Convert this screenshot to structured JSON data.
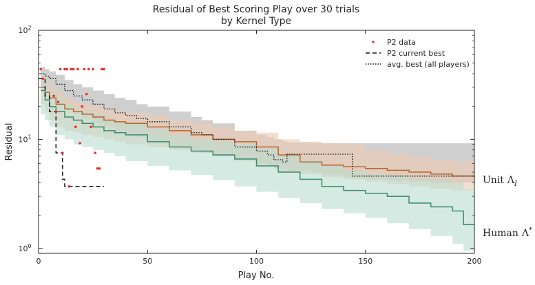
{
  "chart_data": {
    "type": "line",
    "title_line1": "Residual of Best Scoring Play over 30 trials",
    "title_line2": "by Kernel Type",
    "xlabel": "Play No.",
    "ylabel": "Residual",
    "xlim": [
      0,
      200
    ],
    "ylim": [
      0.9,
      100
    ],
    "yscale": "log",
    "x_ticks": [
      "0",
      "50",
      "100",
      "150",
      "200"
    ],
    "y_ticks": [
      {
        "base": "10",
        "exp": "0"
      },
      {
        "base": "10",
        "exp": "1"
      },
      {
        "base": "10",
        "exp": "2"
      }
    ],
    "colors": {
      "unit": "#b5672f",
      "unit_band": "#edc9b0",
      "human": "#3a8a6c",
      "human_band": "#b9dccf",
      "avg_best_band": "#a8a8a8",
      "p2_points": "#e8302a"
    },
    "legend": {
      "position": "top-right",
      "entries": [
        "P2 data",
        "P2 current best",
        "avg. best (all players)"
      ]
    },
    "side_labels": {
      "unit": {
        "text": "Unit",
        "symbol": "Λ",
        "sub": "I"
      },
      "human": {
        "text": "Human",
        "symbol": "Λ",
        "sup": "*"
      }
    },
    "series": [
      {
        "key": "unit",
        "x": [
          1,
          3,
          5,
          8,
          12,
          16,
          20,
          25,
          30,
          35,
          40,
          50,
          60,
          70,
          80,
          90,
          100,
          110,
          120,
          130,
          140,
          150,
          160,
          170,
          180,
          190,
          200
        ],
        "y": [
          30,
          27,
          24,
          21,
          19,
          18,
          17,
          16,
          15,
          14.5,
          14,
          13,
          12,
          11,
          10,
          9.5,
          8.5,
          7.2,
          6.2,
          5.8,
          5.6,
          5.4,
          5.2,
          5.0,
          4.8,
          4.6,
          4.4
        ],
        "lo": [
          23,
          21,
          18,
          15,
          13,
          12,
          11.5,
          11,
          10.5,
          10,
          9.5,
          9,
          8.5,
          8,
          7.5,
          7,
          6.3,
          5.7,
          5.0,
          4.8,
          4.5,
          4.3,
          4.1,
          3.9,
          3.7,
          3.5,
          3.4
        ],
        "hi": [
          36,
          34,
          31,
          27,
          24,
          22,
          21,
          20,
          19,
          18,
          17.5,
          16.5,
          15,
          14,
          13,
          12,
          11.5,
          10,
          9.5,
          9.2,
          9.0,
          8.0,
          7.3,
          7.0,
          6.5,
          6.2,
          6.0
        ]
      },
      {
        "key": "human",
        "x": [
          1,
          3,
          5,
          8,
          12,
          16,
          20,
          25,
          30,
          35,
          40,
          50,
          60,
          70,
          80,
          90,
          100,
          110,
          120,
          130,
          140,
          150,
          160,
          170,
          180,
          190,
          195,
          200
        ],
        "y": [
          28,
          23,
          20,
          18,
          16,
          15,
          14,
          13,
          12,
          11.5,
          11,
          9.5,
          8.5,
          7.8,
          7.2,
          6.6,
          5.7,
          5.0,
          4.3,
          3.7,
          3.4,
          3.2,
          3.0,
          2.6,
          2.4,
          2.2,
          1.65,
          1.65
        ],
        "lo": [
          20,
          17,
          15,
          13,
          11,
          10,
          9,
          8.5,
          8,
          7.5,
          7,
          6.3,
          5.7,
          5.2,
          4.7,
          4.2,
          3.7,
          3.3,
          2.9,
          2.6,
          2.3,
          2.1,
          1.9,
          1.7,
          1.5,
          1.3,
          1.1,
          0.95
        ],
        "hi": [
          36,
          31,
          27,
          24,
          21,
          19,
          18,
          17,
          15,
          14.5,
          14,
          12.5,
          11,
          10,
          9.5,
          9,
          8.2,
          7.3,
          6.5,
          5.7,
          5.1,
          4.8,
          4.6,
          4.4,
          4.2,
          4.0,
          3.5,
          3.3
        ]
      },
      {
        "key": "avg_best",
        "x": [
          1,
          3,
          5,
          8,
          12,
          16,
          20,
          25,
          30,
          35,
          40,
          45,
          50,
          60,
          70,
          75,
          80,
          90,
          100,
          105,
          108,
          112,
          114,
          125,
          130,
          140,
          144,
          150,
          160,
          170,
          180,
          190,
          200
        ],
        "y": [
          40,
          38,
          36,
          32,
          28,
          25,
          23,
          21,
          19,
          17.5,
          16.5,
          15.5,
          14.5,
          13,
          11.5,
          11,
          10,
          8.5,
          7.8,
          7.2,
          6.5,
          6.2,
          7.3,
          7.3,
          7.3,
          7.3,
          4.6,
          4.6,
          4.6,
          4.6,
          4.6,
          4.6,
          4.6
        ],
        "lo": [
          32,
          30,
          28,
          25,
          22,
          19,
          17,
          15.5,
          14,
          13,
          12,
          11,
          10.5,
          9.5,
          8.5,
          8,
          7.5,
          7.0,
          6.5,
          6.0,
          5.7,
          5.4,
          5.4,
          5.2,
          5.0,
          4.7,
          4.5,
          4.4,
          4.3,
          4.2,
          4.1,
          4.0,
          4.0
        ],
        "hi": [
          46,
          44,
          42,
          39,
          35,
          32,
          30,
          28,
          26,
          24,
          23,
          21,
          20,
          18,
          16,
          15,
          14,
          12,
          11,
          10.5,
          10,
          9.6,
          9.4,
          9.3,
          9.2,
          9.2,
          9.2,
          9.2,
          9.2,
          9.2,
          9.2,
          9.2,
          9.2
        ]
      }
    ],
    "p2_data": {
      "x": [
        1,
        2,
        7,
        8,
        9,
        10,
        11,
        12,
        13,
        14,
        15,
        16,
        17,
        18,
        19,
        20,
        21,
        22,
        23,
        24,
        25,
        26,
        27,
        28,
        29,
        30
      ],
      "y": [
        44,
        36,
        25,
        18,
        22,
        44,
        7.5,
        44,
        44,
        3.7,
        44,
        44,
        13,
        44,
        9.2,
        20,
        44,
        26,
        44,
        13,
        44,
        7.5,
        5.4,
        5.4,
        44,
        44
      ]
    },
    "p2_current_best": {
      "x": [
        0,
        3,
        3,
        5,
        5,
        8,
        8,
        11,
        11,
        12,
        12,
        30
      ],
      "y": [
        36,
        36,
        25,
        25,
        18,
        18,
        7.5,
        7.5,
        4.3,
        4.3,
        3.7,
        3.7
      ]
    }
  }
}
